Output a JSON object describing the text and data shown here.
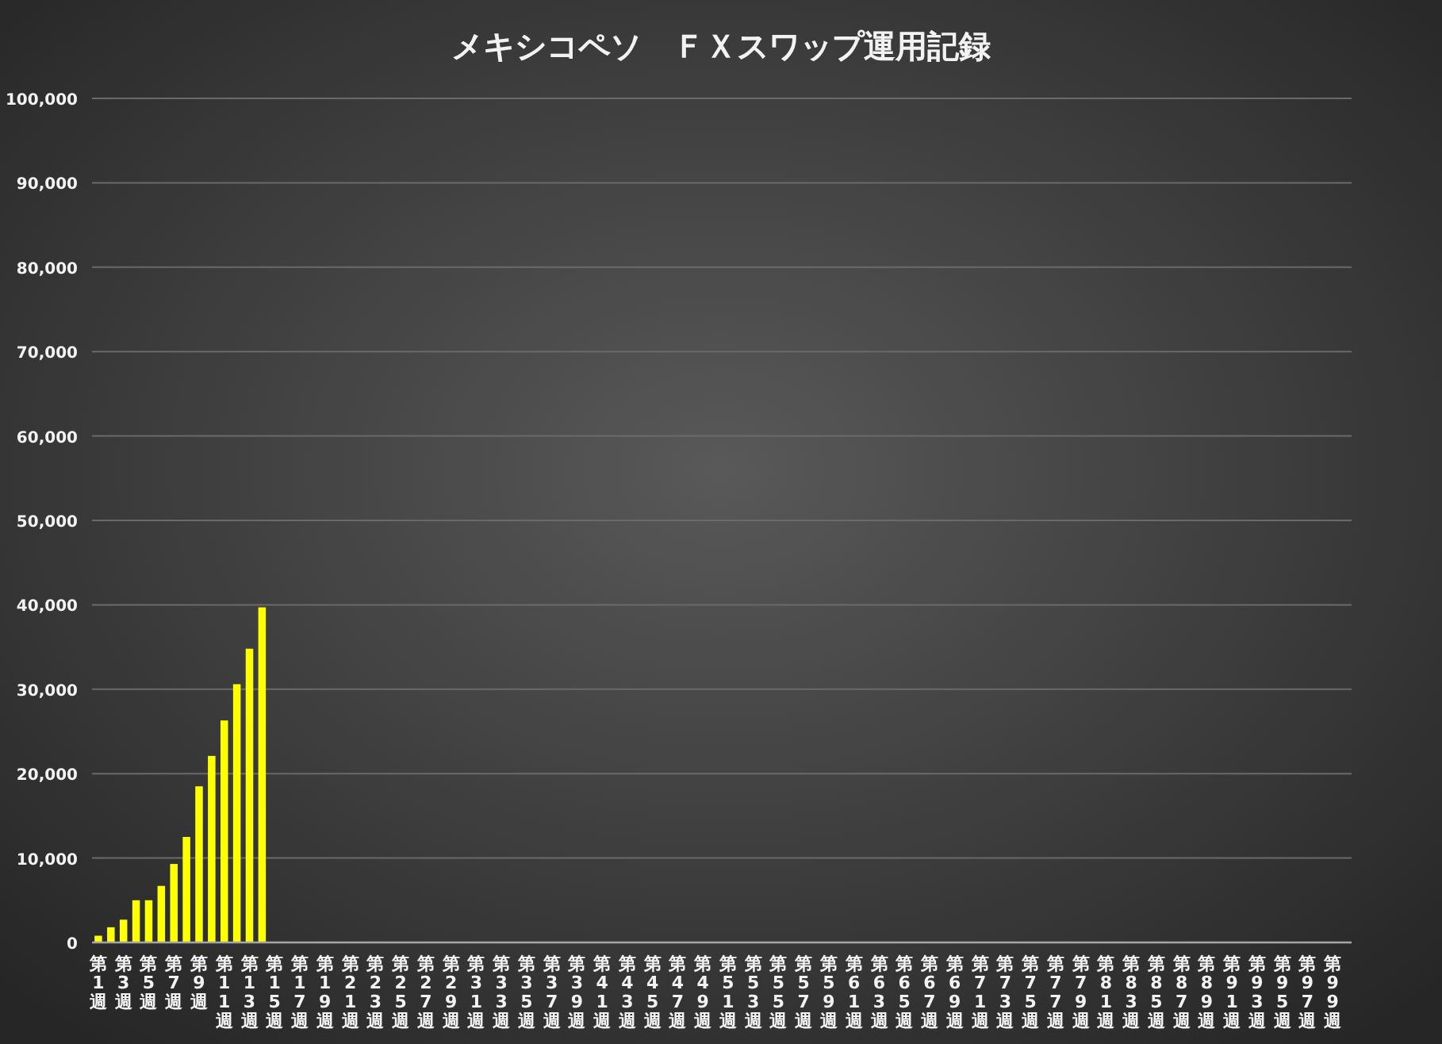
{
  "chart_data": {
    "type": "bar",
    "title": "メキシコペソ　ＦＸスワップ運用記録",
    "categories": [
      "第1週",
      null,
      "第3週",
      null,
      "第5週",
      null,
      "第7週",
      null,
      "第9週",
      null,
      "第11週",
      null,
      "第13週",
      null,
      "第15週",
      null,
      "第17週",
      null,
      "第19週",
      null,
      "第21週",
      null,
      "第23週",
      null,
      "第25週",
      null,
      "第27週",
      null,
      "第29週",
      null,
      "第31週",
      null,
      "第33週",
      null,
      "第35週",
      null,
      "第37週",
      null,
      "第39週",
      null,
      "第41週",
      null,
      "第43週",
      null,
      "第45週",
      null,
      "第47週",
      null,
      "第49週",
      null,
      "第51週",
      null,
      "第53週",
      null,
      "第55週",
      null,
      "第57週",
      null,
      "第59週",
      null,
      "第61週",
      null,
      "第63週",
      null,
      "第65週",
      null,
      "第67週",
      null,
      "第69週",
      null,
      "第71週",
      null,
      "第73週",
      null,
      "第75週",
      null,
      "第77週",
      null,
      "第79週",
      null,
      "第81週",
      null,
      "第83週",
      null,
      "第85週",
      null,
      "第87週",
      null,
      "第89週",
      null,
      "第91週",
      null,
      "第93週",
      null,
      "第95週",
      null,
      "第97週",
      null,
      "第99週",
      null
    ],
    "values": [
      800,
      1800,
      2700,
      5000,
      5000,
      6700,
      9300,
      12500,
      18500,
      22100,
      26300,
      30600,
      34800,
      39700,
      null,
      null,
      null,
      null,
      null,
      null,
      null,
      null,
      null,
      null,
      null,
      null,
      null,
      null,
      null,
      null,
      null,
      null,
      null,
      null,
      null,
      null,
      null,
      null,
      null,
      null,
      null,
      null,
      null,
      null,
      null,
      null,
      null,
      null,
      null,
      null,
      null,
      null,
      null,
      null,
      null,
      null,
      null,
      null,
      null,
      null,
      null,
      null,
      null,
      null,
      null,
      null,
      null,
      null,
      null,
      null,
      null,
      null,
      null,
      null,
      null,
      null,
      null,
      null,
      null,
      null,
      null,
      null,
      null,
      null,
      null,
      null,
      null,
      null,
      null,
      null,
      null,
      null,
      null,
      null,
      null,
      null,
      null,
      null,
      null,
      null
    ],
    "color": "#ffff00",
    "ylim": [
      0,
      100000
    ],
    "yticks": [
      0,
      {
        "value": 10000,
        "label": "10,000"
      },
      {
        "value": 20000,
        "label": "20,000"
      },
      {
        "value": 30000,
        "label": "30,000"
      },
      {
        "value": 40000,
        "label": "40,000"
      },
      {
        "value": 50000,
        "label": "50,000"
      },
      {
        "value": 60000,
        "label": "60,000"
      },
      {
        "value": 70000,
        "label": "70,000"
      },
      {
        "value": 80000,
        "label": "80,000"
      },
      {
        "value": 90000,
        "label": "90,000"
      },
      {
        "value": 100000,
        "label": "100,000"
      }
    ],
    "grid": "y"
  }
}
